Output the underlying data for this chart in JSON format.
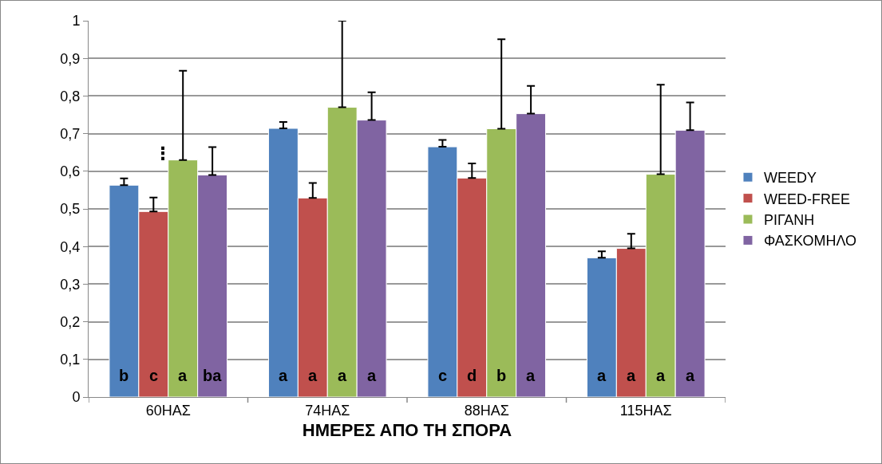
{
  "chart_data": {
    "type": "bar",
    "xlabel": "ΗΜΕΡΕΣ ΑΠΟ ΤΗ ΣΠΟΡΑ",
    "categories": [
      "60ΗΑΣ",
      "74ΗΑΣ",
      "88ΗΑΣ",
      "115ΗΑΣ"
    ],
    "series": [
      {
        "name": "WEEDY",
        "color": "#4f81bd",
        "values": [
          0.563,
          0.714,
          0.665,
          0.37
        ],
        "errors": [
          [
            0.563,
            0.581
          ],
          [
            0.714,
            0.731
          ],
          [
            0.665,
            0.683
          ],
          [
            0.37,
            0.387
          ]
        ],
        "value_labels": [
          "b",
          "a",
          "c",
          "a"
        ]
      },
      {
        "name": "WEED-FREE",
        "color": "#c0504d",
        "values": [
          0.493,
          0.529,
          0.582,
          0.395
        ],
        "errors": [
          [
            0.493,
            0.53
          ],
          [
            0.529,
            0.569
          ],
          [
            0.582,
            0.621
          ],
          [
            0.395,
            0.434
          ]
        ],
        "value_labels": [
          "c",
          "a",
          "d",
          "a"
        ]
      },
      {
        "name": "ΡΙΓΑΝΗ",
        "color": "#9bbb59",
        "values": [
          0.63,
          0.77,
          0.713,
          0.592
        ],
        "errors": [
          [
            0.63,
            0.867
          ],
          [
            0.77,
            1
          ],
          [
            0.713,
            0.951
          ],
          [
            0.592,
            0.83
          ]
        ],
        "value_labels": [
          "a",
          "a",
          "b",
          "a"
        ]
      },
      {
        "name": "ΦΑΣΚΟΜΗΛΟ",
        "color": "#8064a2",
        "values": [
          0.59,
          0.736,
          0.753,
          0.709
        ],
        "errors": [
          [
            0.59,
            0.664
          ],
          [
            0.736,
            0.81
          ],
          [
            0.753,
            0.827
          ],
          [
            0.709,
            0.783
          ]
        ],
        "value_labels": [
          "ba",
          "a",
          "a",
          "a"
        ]
      }
    ],
    "annotations": [
      "⋮"
    ],
    "ylim": [
      0,
      1
    ],
    "yticks": [
      0,
      {
        "value": 0.1,
        "label": "0,1"
      },
      {
        "value": 0.2,
        "label": "0,2"
      },
      {
        "value": 0.3,
        "label": "0,3"
      },
      {
        "value": 0.4,
        "label": "0,4"
      },
      {
        "value": 0.5,
        "label": "0,5"
      },
      {
        "value": 0.6,
        "label": "0,6"
      },
      {
        "value": 0.7,
        "label": "0,7"
      },
      {
        "value": 0.8,
        "label": "0,8"
      },
      {
        "value": 0.9,
        "label": "0,9"
      },
      1
    ],
    "grid": "y",
    "legend": "right"
  }
}
